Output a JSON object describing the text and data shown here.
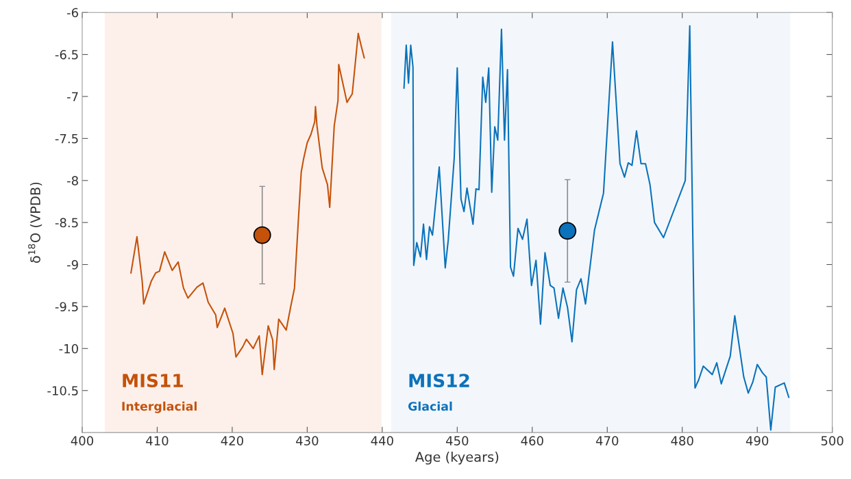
{
  "chart_data": {
    "type": "line",
    "xlabel": "Age (kyears)",
    "ylabel": "δ$^{18}$O (VPDB)",
    "xlim": [
      400,
      500
    ],
    "xticks": [
      400,
      410,
      420,
      430,
      440,
      450,
      460,
      470,
      480,
      490,
      500
    ],
    "ylim": [
      -11,
      -6
    ],
    "yticks": [
      -6,
      -6.5,
      -7,
      -7.5,
      -8,
      -8.5,
      -9,
      -9.5,
      -10,
      -10.5
    ],
    "grid": false,
    "legend": false,
    "line_style": "solid",
    "series": [
      {
        "color": "#c4520a",
        "marker": "none",
        "x": [
          406.5,
          407.3,
          408.0,
          408.2,
          409.2,
          409.8,
          410.3,
          411.0,
          412.0,
          412.8,
          413.5,
          414.1,
          415.3,
          416.1,
          416.8,
          417.8,
          418.0,
          419.0,
          420.1,
          420.5,
          421.4,
          421.9,
          422.8,
          423.6,
          424.0,
          424.8,
          425.4,
          425.6,
          426.2,
          427.2,
          427.8,
          428.3,
          428.8,
          429.2,
          429.5,
          430.0,
          430.5,
          431.0,
          431.1,
          431.3,
          432.0,
          432.7,
          433.0,
          433.6,
          434.1,
          434.2,
          435.3,
          436.0,
          436.3,
          436.8,
          437.2,
          437.6
        ],
        "values": [
          -9.1,
          -8.67,
          -9.2,
          -9.47,
          -9.2,
          -9.1,
          -9.08,
          -8.85,
          -9.07,
          -8.97,
          -9.28,
          -9.4,
          -9.27,
          -9.22,
          -9.45,
          -9.6,
          -9.75,
          -9.52,
          -9.82,
          -10.1,
          -9.98,
          -9.89,
          -10.0,
          -9.85,
          -10.31,
          -9.73,
          -9.9,
          -10.25,
          -9.65,
          -9.78,
          -9.5,
          -9.28,
          -8.5,
          -7.9,
          -7.75,
          -7.55,
          -7.45,
          -7.3,
          -7.12,
          -7.35,
          -7.85,
          -8.05,
          -8.32,
          -7.35,
          -7.05,
          -6.62,
          -7.07,
          -6.97,
          -6.7,
          -6.25,
          -6.4,
          -6.54
        ]
      },
      {
        "color": "#0b72bb",
        "marker": "none",
        "x": [
          442.9,
          443.2,
          443.5,
          443.8,
          444.1,
          444.2,
          444.6,
          445.1,
          445.5,
          445.9,
          446.3,
          446.7,
          447.6,
          448.4,
          448.8,
          449.6,
          450.0,
          450.5,
          450.9,
          451.3,
          452.1,
          452.5,
          452.9,
          453.4,
          453.8,
          454.2,
          454.6,
          455.0,
          455.4,
          455.9,
          456.3,
          456.7,
          457.1,
          457.5,
          458.1,
          458.7,
          459.3,
          459.9,
          460.5,
          461.1,
          461.7,
          462.4,
          462.9,
          463.5,
          464.1,
          464.7,
          465.3,
          465.9,
          466.5,
          467.1,
          468.3,
          469.5,
          470.7,
          471.7,
          472.3,
          472.8,
          473.3,
          473.9,
          474.5,
          475.1,
          475.7,
          476.3,
          477.5,
          480.4,
          481.0,
          481.7,
          482.2,
          482.8,
          484.0,
          484.6,
          485.2,
          486.4,
          487.0,
          488.2,
          488.8,
          489.4,
          490.0,
          490.7,
          491.2,
          491.8,
          492.4,
          493.6,
          494.2
        ],
        "values": [
          -6.9,
          -6.39,
          -6.84,
          -6.39,
          -6.65,
          -9.01,
          -8.74,
          -8.91,
          -8.52,
          -8.94,
          -8.55,
          -8.65,
          -7.84,
          -9.04,
          -8.71,
          -7.73,
          -6.66,
          -8.22,
          -8.37,
          -8.09,
          -8.52,
          -8.1,
          -8.11,
          -6.77,
          -7.07,
          -6.66,
          -8.14,
          -7.36,
          -7.52,
          -6.2,
          -7.52,
          -6.68,
          -9.03,
          -9.14,
          -8.57,
          -8.7,
          -8.46,
          -9.25,
          -8.95,
          -9.71,
          -8.86,
          -9.25,
          -9.28,
          -9.64,
          -9.28,
          -9.51,
          -9.92,
          -9.3,
          -9.17,
          -9.47,
          -8.59,
          -8.15,
          -6.35,
          -7.8,
          -7.96,
          -7.79,
          -7.82,
          -7.41,
          -7.8,
          -7.8,
          -8.05,
          -8.5,
          -8.68,
          -8.0,
          -6.16,
          -10.47,
          -10.37,
          -10.21,
          -10.31,
          -10.17,
          -10.42,
          -10.09,
          -9.61,
          -10.34,
          -10.53,
          -10.4,
          -10.19,
          -10.29,
          -10.34,
          -10.97,
          -10.46,
          -10.41,
          -10.58
        ]
      },
      {
        "type": "scatter",
        "marker": "circle",
        "color": "#c4520a",
        "x": [
          424.0
        ],
        "values": [
          -8.65
        ],
        "errors": [
          0.58
        ]
      },
      {
        "type": "scatter",
        "marker": "circle",
        "color": "#0b72bb",
        "x": [
          464.7
        ],
        "values": [
          -8.6
        ],
        "errors": [
          0.61
        ]
      }
    ],
    "bands": [
      {
        "axis": "x",
        "from": 403.0,
        "to": 439.9,
        "label": "MIS11",
        "color": "#fdf0eb"
      },
      {
        "axis": "x",
        "from": 441.2,
        "to": 494.4,
        "label": "MIS12",
        "color": "#f3f7fb"
      }
    ],
    "annotations": [
      "Interglacial",
      "Glacial"
    ]
  }
}
